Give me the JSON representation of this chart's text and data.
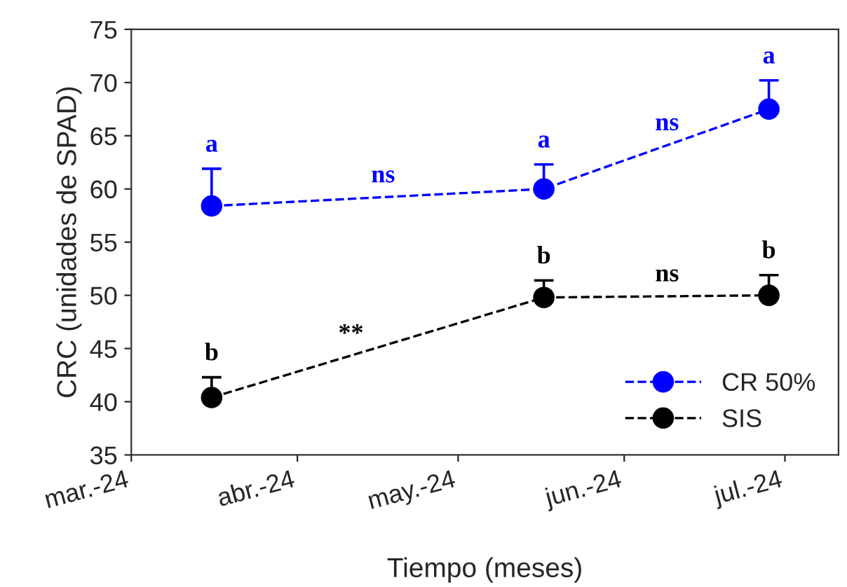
{
  "chart_data": {
    "type": "line",
    "xlabel": "Tiempo (meses)",
    "ylabel": "CRC (unidades de SPAD)",
    "x": [
      "2024-03-16",
      "2024-05-17",
      "2024-06-28"
    ],
    "series": [
      {
        "name": "CR 50%",
        "color": "#0000ff",
        "values": [
          58.4,
          60.0,
          67.5
        ],
        "errors": [
          [
            58.4,
            61.9
          ],
          [
            60.0,
            62.3
          ],
          [
            67.5,
            70.2
          ]
        ],
        "value_labels": [
          "a",
          "a",
          "a"
        ]
      },
      {
        "name": "SIS",
        "color": "#000000",
        "values": [
          40.4,
          49.8,
          50.0
        ],
        "errors": [
          [
            40.4,
            42.3
          ],
          [
            49.8,
            51.4
          ],
          [
            50.0,
            51.9
          ]
        ],
        "value_labels": [
          "b",
          "b",
          "b"
        ]
      }
    ],
    "xlim": [
      "2024-03-01",
      "2024-07-11"
    ],
    "xticks": [
      {
        "value": "2024-03-01",
        "label": "mar.-24"
      },
      {
        "value": "2024-04-01",
        "label": "abr.-24"
      },
      {
        "value": "2024-05-01",
        "label": "may.-24"
      },
      {
        "value": "2024-06-01",
        "label": "jun.-24"
      },
      {
        "value": "2024-07-01",
        "label": "jul.-24"
      }
    ],
    "ylim": [
      35,
      75
    ],
    "yticks": [
      35,
      40,
      45,
      50,
      55,
      60,
      65,
      70,
      75
    ],
    "marker": "circle",
    "line_style": "dashed",
    "grid": false,
    "legend": "bottom right",
    "annotations": [
      {
        "text": "ns",
        "x": "2024-04-17",
        "y": 59.2
      },
      {
        "text": "ns",
        "x": "2024-06-09",
        "y": 64.1
      },
      {
        "text": "ns",
        "x": "2024-06-09",
        "y": 49.9
      },
      {
        "text": "**",
        "x": "2024-04-11",
        "y": 44.3
      }
    ]
  }
}
